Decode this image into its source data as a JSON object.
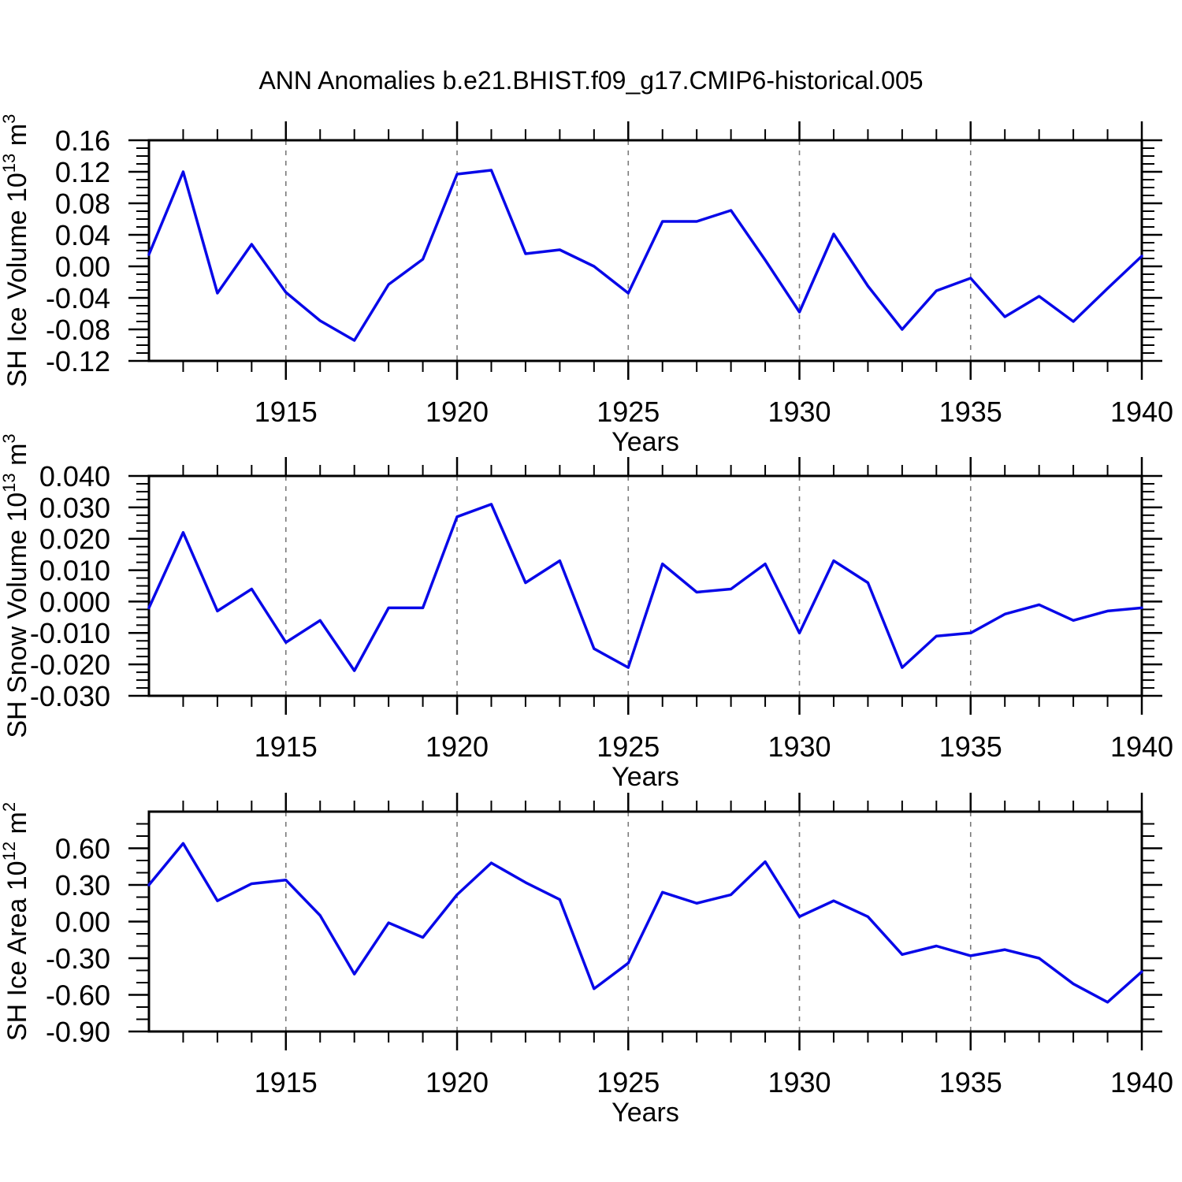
{
  "title": "ANN Anomalies b.e21.BHIST.f09_g17.CMIP6-historical.005",
  "colors": {
    "line": "#0808E8",
    "axis": "#000000",
    "grid": "#7a7a7a",
    "background": "#ffffff"
  },
  "x": {
    "label": "Years",
    "min": 1911,
    "max": 1940,
    "years": [
      1911,
      1912,
      1913,
      1914,
      1915,
      1916,
      1917,
      1918,
      1919,
      1920,
      1921,
      1922,
      1923,
      1924,
      1925,
      1926,
      1927,
      1928,
      1929,
      1930,
      1931,
      1932,
      1933,
      1934,
      1935,
      1936,
      1937,
      1938,
      1939,
      1940
    ],
    "major_ticks": [
      1915,
      1920,
      1925,
      1930,
      1935,
      1940
    ],
    "major_tick_labels": [
      "1915",
      "1920",
      "1925",
      "1930",
      "1935",
      "1940"
    ],
    "gridlines": [
      1915,
      1920,
      1925,
      1930,
      1935
    ],
    "minor_step": 1
  },
  "chart_data": [
    {
      "type": "line",
      "name": "sh-ice-volume",
      "ylabel": "SH Ice Volume 10^13 m^3",
      "ylabel_parts": [
        {
          "t": "SH Ice Volume 10"
        },
        {
          "t": "13",
          "sup": true
        },
        {
          "t": " m"
        },
        {
          "t": "3",
          "sup": true
        }
      ],
      "ylim": [
        -0.12,
        0.16
      ],
      "ytick_values": [
        0.16,
        0.12,
        0.08,
        0.04,
        0.0,
        -0.04,
        -0.08,
        -0.12
      ],
      "ytick_labels": [
        "0.16",
        "0.12",
        "0.08",
        "0.04",
        "0.00",
        "-0.04",
        "-0.08",
        "-0.12"
      ],
      "yminor_step": 0.01,
      "grid": "vertical-dashed",
      "legend": "none",
      "values": [
        0.015,
        0.12,
        -0.034,
        0.028,
        -0.033,
        -0.069,
        -0.094,
        -0.023,
        0.009,
        0.117,
        0.122,
        0.016,
        0.021,
        0.0,
        -0.034,
        0.057,
        0.057,
        0.071,
        0.008,
        -0.058,
        0.041,
        -0.025,
        -0.08,
        -0.031,
        -0.015,
        -0.064,
        -0.038,
        -0.07,
        -0.028,
        0.013
      ]
    },
    {
      "type": "line",
      "name": "sh-snow-volume",
      "ylabel": "SH Snow Volume 10^13 m^3",
      "ylabel_parts": [
        {
          "t": "SH Snow Volume 10"
        },
        {
          "t": "13",
          "sup": true
        },
        {
          "t": " m"
        },
        {
          "t": "3",
          "sup": true
        }
      ],
      "ylim": [
        -0.03,
        0.04
      ],
      "ytick_values": [
        0.04,
        0.03,
        0.02,
        0.01,
        0.0,
        -0.01,
        -0.02,
        -0.03
      ],
      "ytick_labels": [
        "0.040",
        "0.030",
        "0.020",
        "0.010",
        "0.000",
        "-0.010",
        "-0.020",
        "-0.030"
      ],
      "yminor_step": 0.0025,
      "grid": "vertical-dashed",
      "legend": "none",
      "values": [
        -0.002,
        0.022,
        -0.003,
        0.004,
        -0.013,
        -0.006,
        -0.022,
        -0.002,
        -0.002,
        0.027,
        0.031,
        0.006,
        0.013,
        -0.015,
        -0.021,
        0.012,
        0.003,
        0.004,
        0.012,
        -0.01,
        0.013,
        0.006,
        -0.021,
        -0.011,
        -0.01,
        -0.004,
        -0.001,
        -0.006,
        -0.003,
        -0.002
      ]
    },
    {
      "type": "line",
      "name": "sh-ice-area",
      "ylabel": "SH Ice Area 10^12 m^2",
      "ylabel_parts": [
        {
          "t": "SH Ice Area 10"
        },
        {
          "t": "12",
          "sup": true
        },
        {
          "t": " m"
        },
        {
          "t": "2",
          "sup": true
        }
      ],
      "ylim": [
        -0.9,
        0.9
      ],
      "ytick_values": [
        0.6,
        0.3,
        0.0,
        -0.3,
        -0.6,
        -0.9
      ],
      "ytick_labels": [
        "0.60",
        "0.30",
        "0.00",
        "-0.30",
        "-0.60",
        "-0.90"
      ],
      "yminor_step": 0.1,
      "grid": "vertical-dashed",
      "legend": "none",
      "values": [
        0.3,
        0.64,
        0.17,
        0.31,
        0.34,
        0.05,
        -0.43,
        -0.01,
        -0.13,
        0.22,
        0.48,
        0.32,
        0.18,
        -0.55,
        -0.34,
        0.24,
        0.15,
        0.22,
        0.49,
        0.04,
        0.17,
        0.04,
        -0.27,
        -0.2,
        -0.28,
        -0.23,
        -0.3,
        -0.51,
        -0.66,
        -0.41
      ]
    }
  ]
}
